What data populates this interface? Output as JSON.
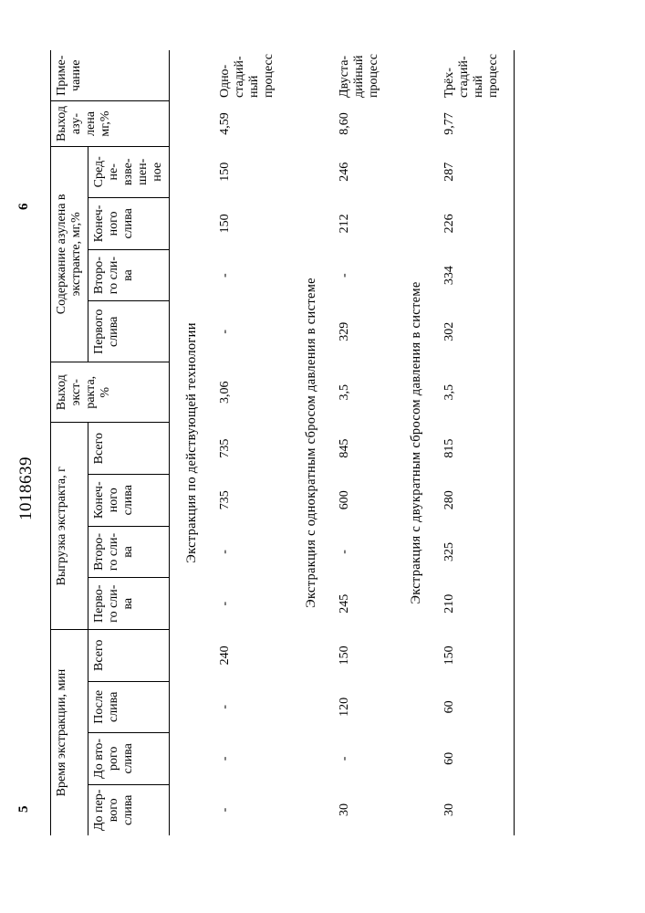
{
  "document_number": "1018639",
  "left_colnum": "5",
  "right_colnum": "6",
  "headers": {
    "time_group": "Время экстракции, мин",
    "time_sub": [
      "До пер-\nвого\nслива",
      "До вто-\nрого\nслива",
      "После\nслива",
      "Всего"
    ],
    "unload_group": "Выгрузка экстракта, г",
    "unload_sub": [
      "Перво-\nго сли-\nва",
      "Второ-\nго сли-\nва",
      "Конеч-\nного\nслива",
      "Всего"
    ],
    "yield_extract": "Выход\nэкст-\nракта,\n%",
    "azulene_group": "Содержание азулена в\nэкстракте, мг,%",
    "azulene_sub": [
      "Первого\nслива",
      "Второ-\nго сли-\nва",
      "Конеч-\nного\nслива",
      "Сред-\nне-\nвзве-\nшен-\nное"
    ],
    "yield_azulene": "Выход\nазу-\nлена\nмг,%",
    "note": "Приме-\nчание"
  },
  "sections": [
    {
      "title": "Экстракция по действующей технологии",
      "row": [
        "-",
        "-",
        "-",
        "240",
        "-",
        "-",
        "735",
        "735",
        "3,06",
        "-",
        "-",
        "150",
        "150",
        "4,59",
        "Одно-\nстадий-\nный\nпроцесс"
      ]
    },
    {
      "title": "Экстракция с однократным сбросом давления в системе",
      "row": [
        "30",
        "-",
        "120",
        "150",
        "245",
        "-",
        "600",
        "845",
        "3,5",
        "329",
        "-",
        "212",
        "246",
        "8,60",
        "Двуста-\nдийный\nпроцесс"
      ]
    },
    {
      "title": "Экстракция с двукратным сбросом давления в системе",
      "row": [
        "30",
        "60",
        "60",
        "150",
        "210",
        "325",
        "280",
        "815",
        "3,5",
        "302",
        "334",
        "226",
        "287",
        "9,77",
        "Трёх-\nстадий-\nный\nпроцесс"
      ]
    }
  ]
}
